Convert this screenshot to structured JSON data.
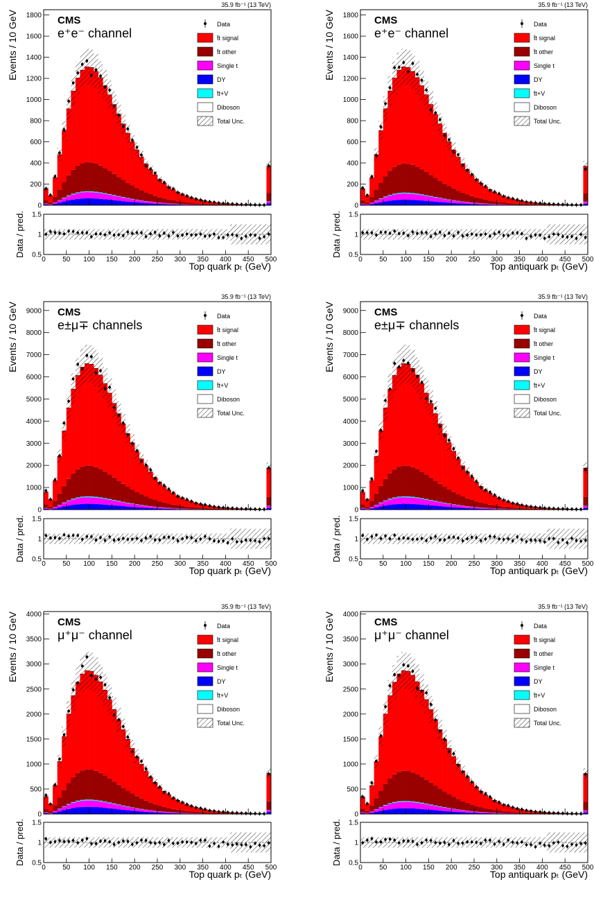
{
  "chart_data": [
    {
      "type": "bar",
      "panel": "top-left",
      "lumi_label": "35.9 fb⁻¹ (13 TeV)",
      "experiment": "CMS",
      "channel": "e⁺e⁻ channel",
      "ylabel": "Events / 10 GeV",
      "xlabel": "Top quark pₜ (GeV)",
      "ratio_ylabel": "Data / pred.",
      "ylim": [
        0,
        1850
      ],
      "yticks": [
        0,
        200,
        400,
        600,
        800,
        1000,
        1200,
        1400,
        1600,
        1800
      ],
      "xticks": [
        0,
        50,
        100,
        150,
        200,
        250,
        300,
        350,
        400,
        450,
        500
      ],
      "ratio_yticks": [
        0.5,
        1,
        1.5
      ],
      "legend": [
        "Data",
        "t̄t signal",
        "t̄t other",
        "Single t",
        "DY",
        "t̄t+V",
        "Diboson",
        "Total Unc."
      ],
      "peak": 1310,
      "data_peak": 1340
    },
    {
      "type": "bar",
      "panel": "top-right",
      "lumi_label": "35.9 fb⁻¹ (13 TeV)",
      "experiment": "CMS",
      "channel": "e⁺e⁻ channel",
      "ylabel": "Events / 10 GeV",
      "xlabel": "Top antiquark pₜ (GeV)",
      "ratio_ylabel": "Data / pred.",
      "ylim": [
        0,
        1850
      ],
      "yticks": [
        0,
        200,
        400,
        600,
        800,
        1000,
        1200,
        1400,
        1600,
        1800
      ],
      "xticks": [
        0,
        50,
        100,
        150,
        200,
        250,
        300,
        350,
        400,
        450,
        500
      ],
      "ratio_yticks": [
        0.5,
        1,
        1.5
      ],
      "legend": [
        "Data",
        "t̄t signal",
        "t̄t other",
        "Single t",
        "DY",
        "t̄t+V",
        "Diboson",
        "Total Unc."
      ],
      "peak": 1310,
      "data_peak": 1380
    },
    {
      "type": "bar",
      "panel": "middle-left",
      "lumi_label": "35.9 fb⁻¹ (13 TeV)",
      "experiment": "CMS",
      "channel": "e±μ∓ channels",
      "ylabel": "Events / 10 GeV",
      "xlabel": "Top quark pₜ (GeV)",
      "ratio_ylabel": "Data / pred.",
      "ylim": [
        0,
        9400
      ],
      "yticks": [
        0,
        1000,
        2000,
        3000,
        4000,
        5000,
        6000,
        7000,
        8000,
        9000
      ],
      "xticks": [
        0,
        50,
        100,
        150,
        200,
        250,
        300,
        350,
        400,
        450,
        500
      ],
      "ratio_yticks": [
        0.5,
        1,
        1.5
      ],
      "legend": [
        "Data",
        "t̄t signal",
        "t̄t other",
        "Single t",
        "DY",
        "t̄t+V",
        "Diboson",
        "Total Unc."
      ],
      "peak": 6600,
      "data_peak": 6850
    },
    {
      "type": "bar",
      "panel": "middle-right",
      "lumi_label": "35.9 fb⁻¹ (13 TeV)",
      "experiment": "CMS",
      "channel": "e±μ∓ channels",
      "ylabel": "Events / 10 GeV",
      "xlabel": "Top antiquark pₜ (GeV)",
      "ratio_ylabel": "Data / pred.",
      "ylim": [
        0,
        9400
      ],
      "yticks": [
        0,
        1000,
        2000,
        3000,
        4000,
        5000,
        6000,
        7000,
        8000,
        9000
      ],
      "xticks": [
        0,
        50,
        100,
        150,
        200,
        250,
        300,
        350,
        400,
        450,
        500
      ],
      "ratio_yticks": [
        0.5,
        1,
        1.5
      ],
      "legend": [
        "Data",
        "t̄t signal",
        "t̄t other",
        "Single t",
        "DY",
        "t̄t+V",
        "Diboson",
        "Total Unc."
      ],
      "peak": 6600,
      "data_peak": 6800
    },
    {
      "type": "bar",
      "panel": "bottom-left",
      "lumi_label": "35.9 fb⁻¹ (13 TeV)",
      "experiment": "CMS",
      "channel": "μ⁺μ⁻ channel",
      "ylabel": "Events / 10 GeV",
      "xlabel": "Top quark pₜ (GeV)",
      "ratio_ylabel": "Data / pred.",
      "ylim": [
        0,
        4050
      ],
      "yticks": [
        0,
        500,
        1000,
        1500,
        2000,
        2500,
        3000,
        3500,
        4000
      ],
      "xticks": [
        0,
        50,
        100,
        150,
        200,
        250,
        300,
        350,
        400,
        450,
        500
      ],
      "ratio_yticks": [
        0.5,
        1,
        1.5
      ],
      "legend": [
        "Data",
        "t̄t signal",
        "t̄t other",
        "Single t",
        "DY",
        "t̄t+V",
        "Diboson",
        "Total Unc."
      ],
      "peak": 2870,
      "data_peak": 2960
    },
    {
      "type": "bar",
      "panel": "bottom-right",
      "lumi_label": "35.9 fb⁻¹ (13 TeV)",
      "experiment": "CMS",
      "channel": "μ⁺μ⁻ channel",
      "ylabel": "Events / 10 GeV",
      "xlabel": "Top antiquark pₜ (GeV)",
      "ratio_ylabel": "Data / pred.",
      "ylim": [
        0,
        4050
      ],
      "yticks": [
        0,
        500,
        1000,
        1500,
        2000,
        2500,
        3000,
        3500,
        4000
      ],
      "xticks": [
        0,
        50,
        100,
        150,
        200,
        250,
        300,
        350,
        400,
        450,
        500
      ],
      "ratio_yticks": [
        0.5,
        1,
        1.5
      ],
      "legend": [
        "Data",
        "t̄t signal",
        "t̄t other",
        "Single t",
        "DY",
        "t̄t+V",
        "Diboson",
        "Total Unc."
      ],
      "peak": 2870,
      "data_peak": 2990
    }
  ],
  "colors": {
    "signal": "#ff0000",
    "other": "#990000",
    "single_t": "#ff00ff",
    "dy": "#0000ff",
    "ttv": "#00ffff",
    "diboson": "#ffffff",
    "data": "#000000"
  }
}
